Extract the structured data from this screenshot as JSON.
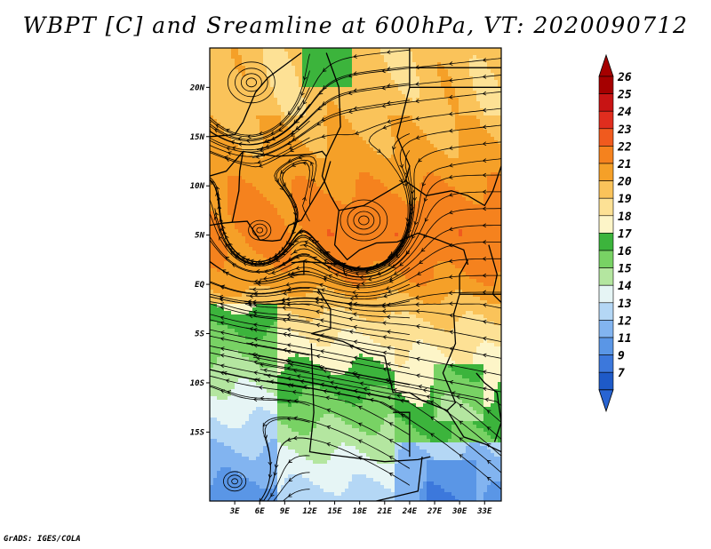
{
  "title": "WBPT [C] and Sreamline at 600hPa, VT: 2020090712",
  "footer": "GrADS: IGES/COLA",
  "map": {
    "lon_range": [
      0,
      35
    ],
    "lat_range": [
      -22,
      24
    ],
    "lat_ticks": [
      {
        "value": 20,
        "label": "20N"
      },
      {
        "value": 15,
        "label": "15N"
      },
      {
        "value": 10,
        "label": "10N"
      },
      {
        "value": 5,
        "label": "5N"
      },
      {
        "value": 0,
        "label": "EQ"
      },
      {
        "value": -5,
        "label": "5S"
      },
      {
        "value": -10,
        "label": "10S"
      },
      {
        "value": -15,
        "label": "15S"
      }
    ],
    "lon_ticks": [
      {
        "value": 3,
        "label": "3E"
      },
      {
        "value": 6,
        "label": "6E"
      },
      {
        "value": 9,
        "label": "9E"
      },
      {
        "value": 12,
        "label": "12E"
      },
      {
        "value": 15,
        "label": "15E"
      },
      {
        "value": 18,
        "label": "18E"
      },
      {
        "value": 21,
        "label": "21E"
      },
      {
        "value": 24,
        "label": "24E"
      },
      {
        "value": 27,
        "label": "27E"
      },
      {
        "value": 30,
        "label": "30E"
      },
      {
        "value": 33,
        "label": "33E"
      }
    ]
  },
  "colorbar": {
    "levels": [
      {
        "label": "26",
        "color": "#a50000"
      },
      {
        "label": "25",
        "color": "#c81414"
      },
      {
        "label": "24",
        "color": "#e02d1e"
      },
      {
        "label": "23",
        "color": "#f05a1e"
      },
      {
        "label": "22",
        "color": "#f5821e"
      },
      {
        "label": "21",
        "color": "#f5a028"
      },
      {
        "label": "20",
        "color": "#fac35a"
      },
      {
        "label": "19",
        "color": "#fde195"
      },
      {
        "label": "18",
        "color": "#fdf5c8"
      },
      {
        "label": "17",
        "color": "#3cb43c"
      },
      {
        "label": "16",
        "color": "#78d264"
      },
      {
        "label": "15",
        "color": "#b4e6a0"
      },
      {
        "label": "14",
        "color": "#e6f5f5"
      },
      {
        "label": "13",
        "color": "#b4d7f5"
      },
      {
        "label": "12",
        "color": "#82b4f0"
      },
      {
        "label": "11",
        "color": "#5a96e6"
      },
      {
        "label": "9",
        "color": "#3c78dc"
      },
      {
        "label": "7",
        "color": "#1e5ac8"
      }
    ],
    "bottom_color": "#2864d2"
  },
  "field": {
    "features": [
      {
        "lon": 18.5,
        "lat": 6.5,
        "type": "anticyclone"
      },
      {
        "lon": 5,
        "lat": 20.5,
        "type": "anticyclone"
      },
      {
        "lon": 6,
        "lat": 5.5,
        "type": "eddy"
      },
      {
        "lon": 3,
        "lat": -20,
        "type": "eddy"
      }
    ]
  }
}
